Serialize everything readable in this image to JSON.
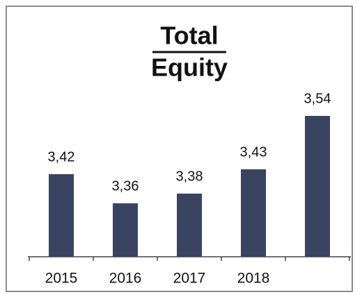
{
  "chart_data": {
    "type": "bar",
    "title": [
      "Total",
      "Equity"
    ],
    "categories": [
      "2015",
      "2016",
      "2017",
      "2018",
      null
    ],
    "values": [
      3.42,
      3.36,
      3.38,
      3.43,
      3.54
    ],
    "value_labels": [
      "3,42",
      "3,36",
      "3,38",
      "3,43",
      "3,54"
    ],
    "color": "#3a4461",
    "ylim": [
      3.25,
      3.6
    ]
  }
}
